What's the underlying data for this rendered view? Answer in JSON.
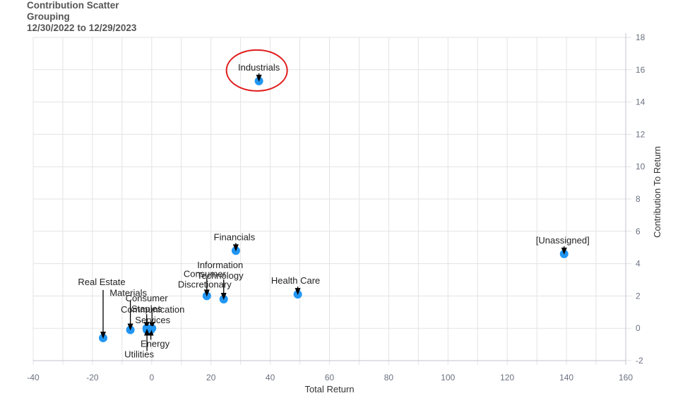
{
  "header": {
    "title": "Contribution Scatter",
    "subtitle": "Grouping",
    "date_range": "12/30/2022 to 12/29/2023"
  },
  "chart_data": {
    "type": "scatter",
    "title": "Contribution Scatter",
    "subtitle": "Grouping",
    "date_range": "12/30/2022 to 12/29/2023",
    "xlabel": "Total Return",
    "ylabel": "Contribution To Return",
    "xlim": [
      -40,
      160
    ],
    "ylim": [
      -2,
      18
    ],
    "x_ticks": [
      -40,
      -20,
      0,
      20,
      40,
      60,
      80,
      100,
      120,
      140,
      160
    ],
    "y_ticks": [
      -2,
      0,
      2,
      4,
      6,
      8,
      10,
      12,
      14,
      16,
      18
    ],
    "y_axis_position": "right",
    "grid": true,
    "point_color": "#2196f3",
    "highlight_color": "#e01b1b",
    "highlighted_point": "Industrials",
    "points": [
      {
        "label": "Industrials",
        "x": 36.2,
        "y": 15.3
      },
      {
        "label": "Financials",
        "x": 28.4,
        "y": 4.8
      },
      {
        "label": "[Unassigned]",
        "x": 139.2,
        "y": 4.6
      },
      {
        "label": "Health Care",
        "x": 49.3,
        "y": 2.1
      },
      {
        "label": "Information Technology",
        "x": 24.3,
        "y": 1.8
      },
      {
        "label": "Consumer Discretionary",
        "x": 18.6,
        "y": 2.0
      },
      {
        "label": "Real Estate",
        "x": -16.4,
        "y": -0.6
      },
      {
        "label": "Materials",
        "x": -7.2,
        "y": -0.1
      },
      {
        "label": "Consumer Staples",
        "x": -1.7,
        "y": 0.0
      },
      {
        "label": "Communication Services",
        "x": 0.1,
        "y": 0.0
      },
      {
        "label": "Energy",
        "x": -0.3,
        "y": -0.1
      },
      {
        "label": "Utilities",
        "x": -1.6,
        "y": -0.1
      }
    ]
  }
}
